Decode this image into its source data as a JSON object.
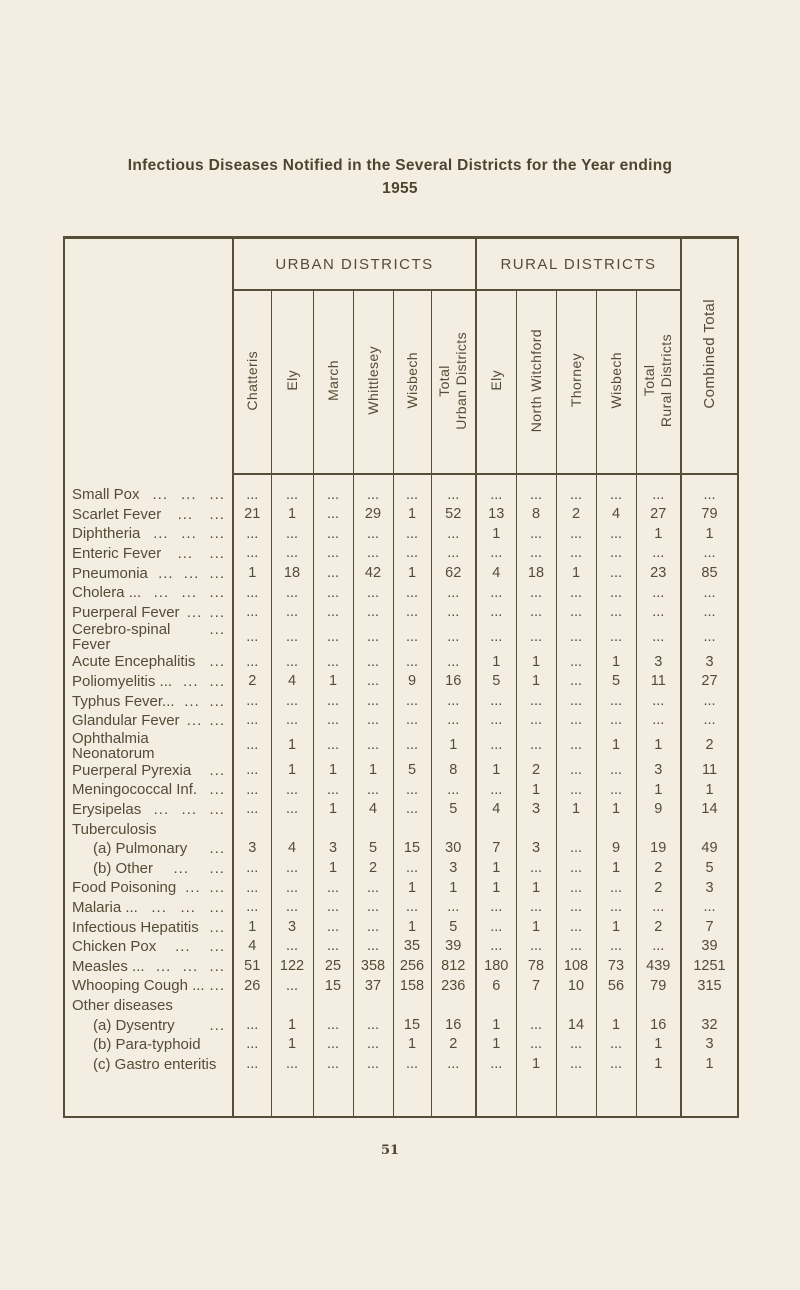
{
  "page": {
    "title_line1": "Infectious Diseases Notified in the Several Districts for the Year ending",
    "title_line2": "1955",
    "page_number": "51"
  },
  "colors": {
    "paper": "#f3eee1",
    "ink": "#534c36"
  },
  "table": {
    "group_headers": {
      "urban": "URBAN DISTRICTS",
      "rural": "RURAL DISTRICTS"
    },
    "combined_label": "Combined Total",
    "columns": [
      {
        "key": "chatteris",
        "label": "Chatteris",
        "group": "urban",
        "thick": true
      },
      {
        "key": "ely-urban",
        "label": "Ely",
        "group": "urban",
        "thick": false
      },
      {
        "key": "march",
        "label": "March",
        "group": "urban",
        "thick": false
      },
      {
        "key": "whittlesey",
        "label": "Whittlesey",
        "group": "urban",
        "thick": false
      },
      {
        "key": "wisbech-urban",
        "label": "Wisbech",
        "group": "urban",
        "thick": false
      },
      {
        "key": "total-urban",
        "label": "Total\nUrban Districts",
        "group": "urban",
        "thick": false
      },
      {
        "key": "ely-rural",
        "label": "Ely",
        "group": "rural",
        "thick": true
      },
      {
        "key": "north-witchford",
        "label": "North Witchford",
        "group": "rural",
        "thick": false
      },
      {
        "key": "thorney",
        "label": "Thorney",
        "group": "rural",
        "thick": false
      },
      {
        "key": "wisbech-rural",
        "label": "Wisbech",
        "group": "rural",
        "thick": false
      },
      {
        "key": "total-rural",
        "label": "Total\nRural Districts",
        "group": "rural",
        "thick": false
      }
    ],
    "rows": [
      {
        "label": "Small Pox",
        "leaders": [
          "...",
          "...",
          "..."
        ],
        "indent": false,
        "values": [
          "...",
          "...",
          "...",
          "...",
          "...",
          "...",
          "...",
          "...",
          "...",
          "...",
          "...",
          "..."
        ]
      },
      {
        "label": "Scarlet Fever",
        "leaders": [
          "...",
          "..."
        ],
        "indent": false,
        "values": [
          "21",
          "1",
          "...",
          "29",
          "1",
          "52",
          "13",
          "8",
          "2",
          "4",
          "27",
          "79"
        ]
      },
      {
        "label": "Diphtheria",
        "leaders": [
          "...",
          "...",
          "..."
        ],
        "indent": false,
        "values": [
          "...",
          "...",
          "...",
          "...",
          "...",
          "...",
          "1",
          "...",
          "...",
          "...",
          "1",
          "1"
        ]
      },
      {
        "label": "Enteric Fever",
        "leaders": [
          "...",
          "..."
        ],
        "indent": false,
        "values": [
          "...",
          "...",
          "...",
          "...",
          "...",
          "...",
          "...",
          "...",
          "...",
          "...",
          "...",
          "..."
        ]
      },
      {
        "label": "Pneumonia",
        "leaders": [
          "...",
          "...",
          "..."
        ],
        "indent": false,
        "values": [
          "1",
          "18",
          "...",
          "42",
          "1",
          "62",
          "4",
          "18",
          "1",
          "...",
          "23",
          "85"
        ]
      },
      {
        "label": "Cholera ...",
        "leaders": [
          "...",
          "...",
          "..."
        ],
        "indent": false,
        "values": [
          "...",
          "...",
          "...",
          "...",
          "...",
          "...",
          "...",
          "...",
          "...",
          "...",
          "...",
          "..."
        ]
      },
      {
        "label": "Puerperal Fever",
        "leaders": [
          "...",
          "..."
        ],
        "indent": false,
        "values": [
          "...",
          "...",
          "...",
          "...",
          "...",
          "...",
          "...",
          "...",
          "...",
          "...",
          "...",
          "..."
        ]
      },
      {
        "label": "Cerebro-spinal Fever",
        "leaders": [
          "..."
        ],
        "indent": false,
        "values": [
          "...",
          "...",
          "...",
          "...",
          "...",
          "...",
          "...",
          "...",
          "...",
          "...",
          "...",
          "..."
        ]
      },
      {
        "label": "Acute Encephalitis",
        "leaders": [
          "..."
        ],
        "indent": false,
        "values": [
          "...",
          "...",
          "...",
          "...",
          "...",
          "...",
          "1",
          "1",
          "...",
          "1",
          "3",
          "3"
        ]
      },
      {
        "label": "Poliomyelitis ...",
        "leaders": [
          "...",
          "..."
        ],
        "indent": false,
        "values": [
          "2",
          "4",
          "1",
          "...",
          "9",
          "16",
          "5",
          "1",
          "...",
          "5",
          "11",
          "27"
        ]
      },
      {
        "label": "Typhus Fever...",
        "leaders": [
          "...",
          "..."
        ],
        "indent": false,
        "values": [
          "...",
          "...",
          "...",
          "...",
          "...",
          "...",
          "...",
          "...",
          "...",
          "...",
          "...",
          "..."
        ]
      },
      {
        "label": "Glandular Fever",
        "leaders": [
          "...",
          "..."
        ],
        "indent": false,
        "values": [
          "...",
          "...",
          "...",
          "...",
          "...",
          "...",
          "...",
          "...",
          "...",
          "...",
          "...",
          "..."
        ]
      },
      {
        "label": "Ophthalmia Neonatorum",
        "leaders": [],
        "indent": false,
        "values": [
          "...",
          "1",
          "...",
          "...",
          "...",
          "1",
          "...",
          "...",
          "...",
          "1",
          "1",
          "2"
        ]
      },
      {
        "label": "Puerperal Pyrexia",
        "leaders": [
          "..."
        ],
        "indent": false,
        "values": [
          "...",
          "1",
          "1",
          "1",
          "5",
          "8",
          "1",
          "2",
          "...",
          "...",
          "3",
          "11"
        ]
      },
      {
        "label": "Meningococcal Inf.",
        "leaders": [
          "..."
        ],
        "indent": false,
        "values": [
          "...",
          "...",
          "...",
          "...",
          "...",
          "...",
          "...",
          "1",
          "...",
          "...",
          "1",
          "1"
        ]
      },
      {
        "label": "Erysipelas",
        "leaders": [
          "...",
          "...",
          "..."
        ],
        "indent": false,
        "values": [
          "...",
          "...",
          "1",
          "4",
          "...",
          "5",
          "4",
          "3",
          "1",
          "1",
          "9",
          "14"
        ]
      },
      {
        "label": "Tuberculosis",
        "leaders": [],
        "indent": false,
        "values": [
          "",
          "",
          "",
          "",
          "",
          "",
          "",
          "",
          "",
          "",
          "",
          ""
        ]
      },
      {
        "label": "(a) Pulmonary",
        "leaders": [
          "..."
        ],
        "indent": true,
        "values": [
          "3",
          "4",
          "3",
          "5",
          "15",
          "30",
          "7",
          "3",
          "...",
          "9",
          "19",
          "49"
        ]
      },
      {
        "label": "(b) Other",
        "leaders": [
          "...",
          "..."
        ],
        "indent": true,
        "values": [
          "...",
          "...",
          "1",
          "2",
          "...",
          "3",
          "1",
          "...",
          "...",
          "1",
          "2",
          "5"
        ]
      },
      {
        "label": "Food Poisoning",
        "leaders": [
          "...",
          "..."
        ],
        "indent": false,
        "values": [
          "...",
          "...",
          "...",
          "...",
          "1",
          "1",
          "1",
          "1",
          "...",
          "...",
          "2",
          "3"
        ]
      },
      {
        "label": "Malaria ...",
        "leaders": [
          "...",
          "...",
          "..."
        ],
        "indent": false,
        "values": [
          "...",
          "...",
          "...",
          "...",
          "...",
          "...",
          "...",
          "...",
          "...",
          "...",
          "...",
          "..."
        ]
      },
      {
        "label": "Infectious Hepatitis",
        "leaders": [
          "..."
        ],
        "indent": false,
        "values": [
          "1",
          "3",
          "...",
          "...",
          "1",
          "5",
          "...",
          "1",
          "...",
          "1",
          "2",
          "7"
        ]
      },
      {
        "label": "Chicken Pox",
        "leaders": [
          "...",
          "..."
        ],
        "indent": false,
        "values": [
          "4",
          "...",
          "...",
          "...",
          "35",
          "39",
          "...",
          "...",
          "...",
          "...",
          "...",
          "39"
        ]
      },
      {
        "label": "Measles ...",
        "leaders": [
          "...",
          "...",
          "..."
        ],
        "indent": false,
        "values": [
          "51",
          "122",
          "25",
          "358",
          "256",
          "812",
          "180",
          "78",
          "108",
          "73",
          "439",
          "1251"
        ]
      },
      {
        "label": "Whooping Cough ...",
        "leaders": [
          "..."
        ],
        "indent": false,
        "values": [
          "26",
          "...",
          "15",
          "37",
          "158",
          "236",
          "6",
          "7",
          "10",
          "56",
          "79",
          "315"
        ]
      },
      {
        "label": "Other diseases",
        "leaders": [],
        "indent": false,
        "values": [
          "",
          "",
          "",
          "",
          "",
          "",
          "",
          "",
          "",
          "",
          "",
          ""
        ]
      },
      {
        "label": "(a) Dysentry",
        "leaders": [
          "..."
        ],
        "indent": true,
        "values": [
          "...",
          "1",
          "...",
          "...",
          "15",
          "16",
          "1",
          "...",
          "14",
          "1",
          "16",
          "32"
        ]
      },
      {
        "label": "(b) Para-typhoid",
        "leaders": [],
        "indent": true,
        "values": [
          "...",
          "1",
          "...",
          "...",
          "1",
          "2",
          "1",
          "...",
          "...",
          "...",
          "1",
          "3"
        ]
      },
      {
        "label": "(c) Gastro enteritis",
        "leaders": [],
        "indent": true,
        "values": [
          "...",
          "...",
          "...",
          "...",
          "...",
          "...",
          "...",
          "1",
          "...",
          "...",
          "1",
          "1"
        ]
      },
      {
        "label": "",
        "leaders": [],
        "indent": false,
        "spacer": true,
        "values": [
          "",
          "",
          "",
          "",
          "",
          "",
          "",
          "",
          "",
          "",
          "",
          ""
        ]
      }
    ]
  }
}
